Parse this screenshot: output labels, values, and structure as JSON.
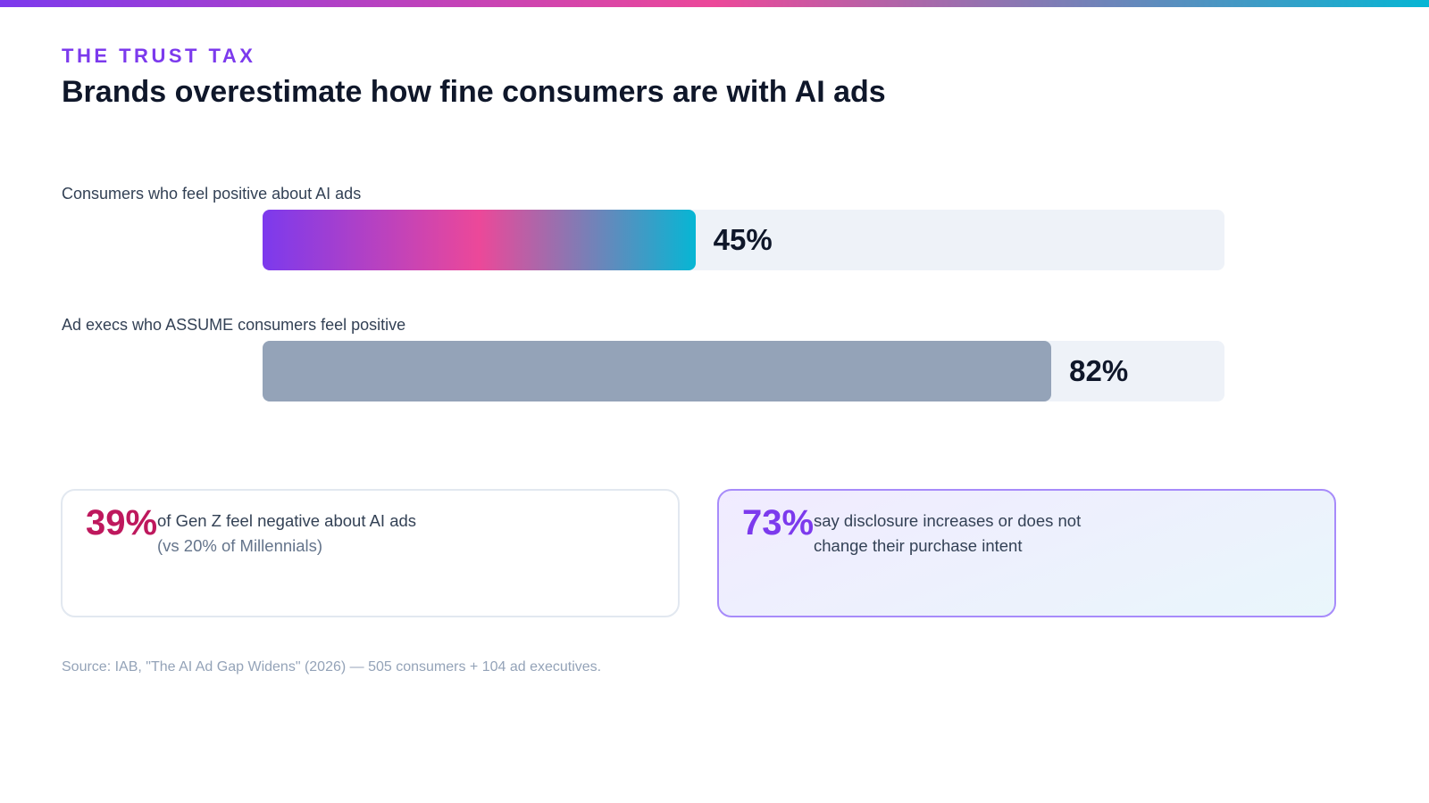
{
  "chart_data": {
    "type": "bar",
    "orientation": "horizontal",
    "kicker": "THE TRUST TAX",
    "title": "Brands overestimate how fine consumers are with AI ads",
    "categories": [
      "Consumers who feel positive about AI ads",
      "Ad execs who ASSUME consumers feel positive"
    ],
    "values": [
      45,
      82
    ],
    "value_labels": [
      "45%",
      "82%"
    ],
    "bar_colors": [
      [
        "#7c3aed",
        "#ec4899",
        "#06b6d4"
      ],
      [
        "#94a3b8"
      ]
    ],
    "track_color": "#eef2f8",
    "xlim": [
      0,
      100
    ],
    "callouts": [
      {
        "value": 39,
        "value_label": "39%",
        "text": "of Gen Z feel negative about AI ads",
        "note": "(vs 20% of Millennials)",
        "color": "#be185d"
      },
      {
        "value": 73,
        "value_label": "73%",
        "text": "say disclosure increases or does not change their purchase intent",
        "color": "#7c3aed"
      }
    ],
    "source": "Source: IAB, \"The AI Ad Gap Widens\" (2026) — 505 consumers + 104 ad executives."
  }
}
